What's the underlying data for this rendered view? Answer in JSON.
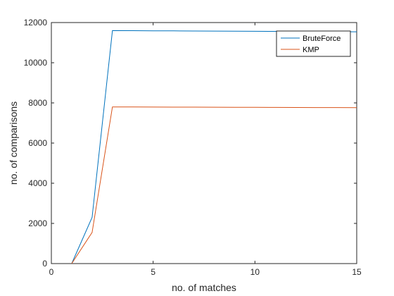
{
  "chart_data": {
    "type": "line",
    "title": "",
    "xlabel": "no. of matches",
    "ylabel": "no. of comparisons",
    "xlim": [
      0,
      15
    ],
    "ylim": [
      0,
      12000
    ],
    "xticks": [
      0,
      5,
      10,
      15
    ],
    "yticks": [
      0,
      2000,
      4000,
      6000,
      8000,
      10000,
      12000
    ],
    "grid": false,
    "legend_position": "top-right",
    "series": [
      {
        "name": "BruteForce",
        "color": "#0072BD",
        "x": [
          1,
          2,
          3,
          4,
          5,
          6,
          7,
          8,
          9,
          10,
          11,
          12,
          13,
          14,
          15
        ],
        "y": [
          0,
          2300,
          11600,
          11595,
          11590,
          11585,
          11580,
          11575,
          11570,
          11565,
          11560,
          11555,
          11550,
          11545,
          11540
        ]
      },
      {
        "name": "KMP",
        "color": "#D95319",
        "x": [
          1,
          2,
          3,
          4,
          5,
          6,
          7,
          8,
          9,
          10,
          11,
          12,
          13,
          14,
          15
        ],
        "y": [
          0,
          1550,
          7800,
          7797,
          7794,
          7791,
          7788,
          7785,
          7782,
          7779,
          7776,
          7773,
          7770,
          7767,
          7764
        ]
      }
    ]
  }
}
